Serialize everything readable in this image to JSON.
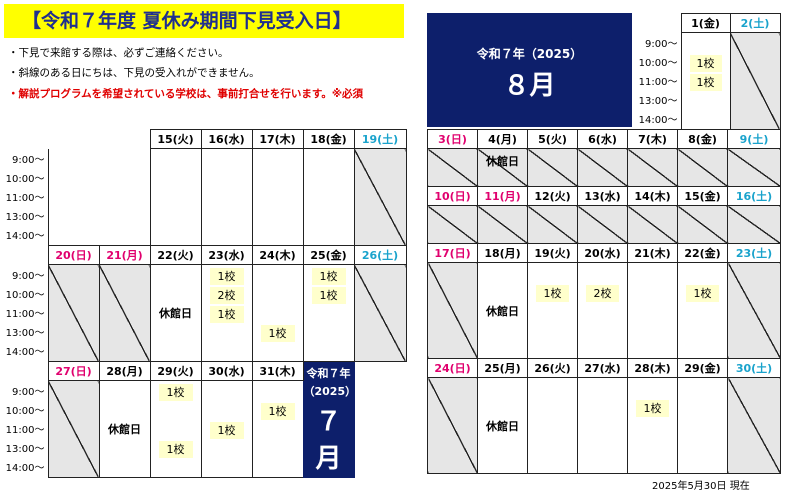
{
  "title": "【令和７年度 夏休み期間下見受入日】",
  "notes": [
    "・下見で来館する際は、必ずご連絡ください。",
    "・斜線のある日にちは、下見の受入れができません。",
    "・解説プログラムを希望されている学校は、事前打合せを行います。※必須"
  ],
  "times": [
    "9:00〜",
    "10:00〜",
    "11:00〜",
    "13:00〜",
    "14:00〜"
  ],
  "july": {
    "era": "令和７年",
    "year": "（2025）",
    "month": "７月",
    "weeks": [
      [
        {
          "label": "",
          "blank": true
        },
        {
          "label": "",
          "blank": true
        },
        {
          "label": "15(火)"
        },
        {
          "label": "16(水)"
        },
        {
          "label": "17(木)"
        },
        {
          "label": "18(金)"
        },
        {
          "label": "19(土)",
          "color": "cyan",
          "closed": true
        }
      ],
      [
        {
          "label": "20(日)",
          "color": "pink",
          "closed": true
        },
        {
          "label": "21(月)",
          "color": "pink",
          "closed": true
        },
        {
          "label": "22(火)",
          "note": "休館日"
        },
        {
          "label": "23(水)",
          "slots": [
            {
              "row": 0,
              "text": "1校"
            },
            {
              "row": 1,
              "text": "2校"
            },
            {
              "row": 2,
              "text": "1校"
            }
          ]
        },
        {
          "label": "24(木)",
          "slots": [
            {
              "row": 3,
              "text": "1校"
            }
          ]
        },
        {
          "label": "25(金)",
          "slots": [
            {
              "row": 0,
              "text": "1校"
            },
            {
              "row": 1,
              "text": "1校"
            }
          ]
        },
        {
          "label": "26(土)",
          "color": "cyan",
          "closed": true
        }
      ],
      [
        {
          "label": "27(日)",
          "color": "pink",
          "closed": true
        },
        {
          "label": "28(月)",
          "note": "休館日"
        },
        {
          "label": "29(火)",
          "slots": [
            {
              "row": 0,
              "text": "1校"
            },
            {
              "row": 3,
              "text": "1校"
            }
          ]
        },
        {
          "label": "30(水)",
          "slots": [
            {
              "row": 2,
              "text": "1校"
            }
          ]
        },
        {
          "label": "31(木)",
          "slots": [
            {
              "row": 1,
              "text": "1校"
            }
          ]
        },
        {
          "label": "",
          "month": true
        },
        {
          "label": "",
          "month": true
        }
      ]
    ]
  },
  "august": {
    "era": "令和７年（2025）",
    "month": "８月",
    "top": [
      {
        "label": "1(金)",
        "slots": [
          {
            "row": 1,
            "text": "1校"
          },
          {
            "row": 2,
            "text": "1校"
          }
        ]
      },
      {
        "label": "2(土)",
        "color": "cyan",
        "closed": true
      }
    ],
    "weeks": [
      [
        {
          "label": "3(日)",
          "color": "pink",
          "closed": true
        },
        {
          "label": "4(月)",
          "note": "休館日",
          "noteTop": true,
          "closed": true
        },
        {
          "label": "5(火)",
          "closed": true
        },
        {
          "label": "6(水)",
          "closed": true
        },
        {
          "label": "7(木)",
          "closed": true
        },
        {
          "label": "8(金)",
          "closed": true
        },
        {
          "label": "9(土)",
          "color": "cyan",
          "closed": true
        }
      ],
      [
        {
          "label": "10(日)",
          "color": "pink",
          "closed": true
        },
        {
          "label": "11(月)",
          "color": "pink",
          "closed": true
        },
        {
          "label": "12(火)",
          "closed": true
        },
        {
          "label": "13(水)",
          "closed": true
        },
        {
          "label": "14(木)",
          "closed": true
        },
        {
          "label": "15(金)",
          "closed": true
        },
        {
          "label": "16(土)",
          "color": "cyan",
          "closed": true
        }
      ],
      [
        {
          "label": "17(日)",
          "color": "pink",
          "closed": true
        },
        {
          "label": "18(月)",
          "note": "休館日"
        },
        {
          "label": "19(火)",
          "slots": [
            {
              "row": 1,
              "text": "1校"
            }
          ]
        },
        {
          "label": "20(水)",
          "slots": [
            {
              "row": 1,
              "text": "2校"
            }
          ]
        },
        {
          "label": "21(木)"
        },
        {
          "label": "22(金)",
          "slots": [
            {
              "row": 1,
              "text": "1校"
            }
          ]
        },
        {
          "label": "23(土)",
          "color": "cyan",
          "closed": true
        }
      ],
      [
        {
          "label": "24(日)",
          "color": "pink",
          "closed": true
        },
        {
          "label": "25(月)",
          "note": "休館日"
        },
        {
          "label": "26(火)"
        },
        {
          "label": "27(水)"
        },
        {
          "label": "28(木)",
          "slots": [
            {
              "row": 1,
              "text": "1校"
            }
          ]
        },
        {
          "label": "29(金)"
        },
        {
          "label": "30(土)",
          "color": "cyan",
          "closed": true
        }
      ]
    ]
  },
  "footer": "2025年5月30日 現在"
}
